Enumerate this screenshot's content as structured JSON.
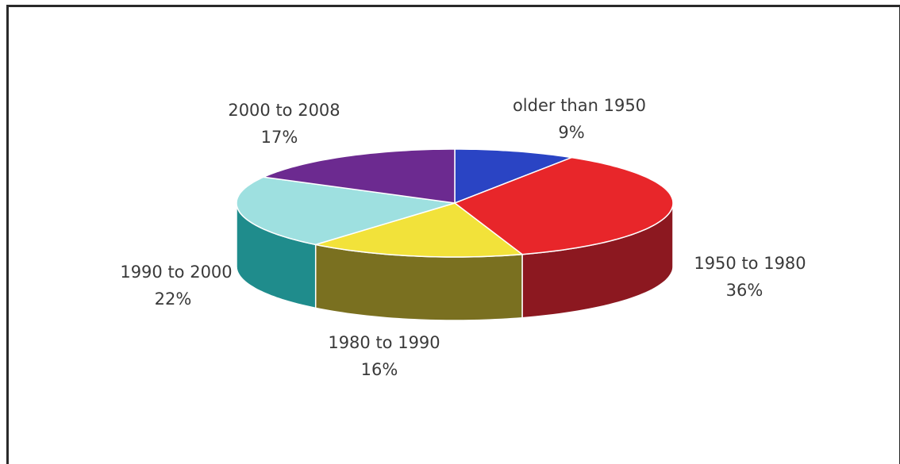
{
  "chart_data": {
    "type": "pie",
    "title": "",
    "categories": [
      "older than 1950",
      "1950 to 1980",
      "1980 to 1990",
      "1990 to 2000",
      "2000 to 2008"
    ],
    "values": [
      9,
      36,
      16,
      22,
      17
    ],
    "labels": [
      {
        "name": "older than 1950",
        "pct": "9%"
      },
      {
        "name": "1950 to 1980",
        "pct": "36%"
      },
      {
        "name": "1980 to 1990",
        "pct": "16%"
      },
      {
        "name": "1990 to 2000",
        "pct": "22%"
      },
      {
        "name": "2000 to 2008",
        "pct": "17%"
      }
    ],
    "colors": [
      "#2a44c4",
      "#e8262a",
      "#f2e23a",
      "#9ee0e0",
      "#6c2a90"
    ],
    "side_colors": [
      "#1a2a80",
      "#8c1820",
      "#7a7020",
      "#1f8c8c",
      "#3e1a56"
    ],
    "style": "3d-tilted",
    "start": "12 o'clock, clockwise"
  }
}
